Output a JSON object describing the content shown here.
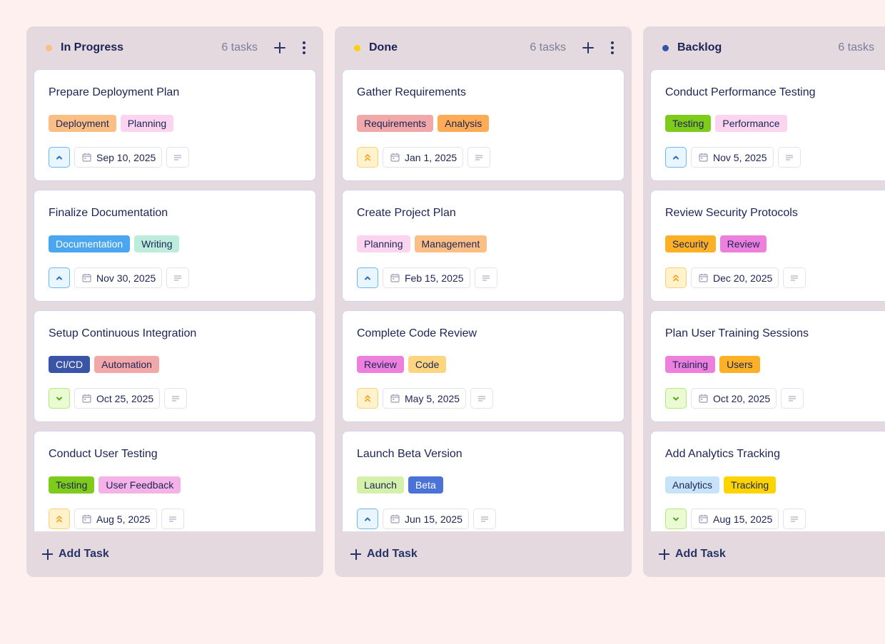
{
  "board": {
    "columns": [
      {
        "title": "In Progress",
        "count": "6 tasks",
        "dot_color": "#fcbf80",
        "add_task_label": "Add Task",
        "cards": [
          {
            "title": "Prepare Deployment Plan",
            "tags": [
              {
                "label": "Deployment",
                "bg": "#fbbf86",
                "fg": "#1c2456"
              },
              {
                "label": "Planning",
                "bg": "#fbd5f0",
                "fg": "#1c2456"
              }
            ],
            "priority": "medium",
            "date": "Sep 10, 2025"
          },
          {
            "title": "Finalize Documentation",
            "tags": [
              {
                "label": "Documentation",
                "bg": "#4aa7ef",
                "fg": "#ffffff"
              },
              {
                "label": "Writing",
                "bg": "#bdebdc",
                "fg": "#1c2456"
              }
            ],
            "priority": "medium",
            "date": "Nov 30, 2025"
          },
          {
            "title": "Setup Continuous Integration",
            "tags": [
              {
                "label": "CI/CD",
                "bg": "#3a55a8",
                "fg": "#ffffff"
              },
              {
                "label": "Automation",
                "bg": "#f2a8a8",
                "fg": "#1c2456"
              }
            ],
            "priority": "low",
            "date": "Oct 25, 2025"
          },
          {
            "title": "Conduct User Testing",
            "tags": [
              {
                "label": "Testing",
                "bg": "#7ecb1c",
                "fg": "#1c2456"
              },
              {
                "label": "User Feedback",
                "bg": "#f5b2e6",
                "fg": "#1c2456"
              }
            ],
            "priority": "high",
            "date": "Aug 5, 2025"
          }
        ]
      },
      {
        "title": "Done",
        "count": "6 tasks",
        "dot_color": "#fbd10a",
        "add_task_label": "Add Task",
        "cards": [
          {
            "title": "Gather Requirements",
            "tags": [
              {
                "label": "Requirements",
                "bg": "#f0a8a8",
                "fg": "#1c2456"
              },
              {
                "label": "Analysis",
                "bg": "#fdac55",
                "fg": "#1c2456"
              }
            ],
            "priority": "high",
            "date": "Jan 1, 2025"
          },
          {
            "title": "Create Project Plan",
            "tags": [
              {
                "label": "Planning",
                "bg": "#fbd5f0",
                "fg": "#1c2456"
              },
              {
                "label": "Management",
                "bg": "#fbbf86",
                "fg": "#1c2456"
              }
            ],
            "priority": "medium",
            "date": "Feb 15, 2025"
          },
          {
            "title": "Complete Code Review",
            "tags": [
              {
                "label": "Review",
                "bg": "#ed80dd",
                "fg": "#1c2456"
              },
              {
                "label": "Code",
                "bg": "#fdd480",
                "fg": "#1c2456"
              }
            ],
            "priority": "high",
            "date": "May 5, 2025"
          },
          {
            "title": "Launch Beta Version",
            "tags": [
              {
                "label": "Launch",
                "bg": "#d5f0a8",
                "fg": "#1c2456"
              },
              {
                "label": "Beta",
                "bg": "#4b72d6",
                "fg": "#ffffff"
              }
            ],
            "priority": "medium",
            "date": "Jun 15, 2025"
          }
        ]
      },
      {
        "title": "Backlog",
        "count": "6 tasks",
        "dot_color": "#3452a8",
        "add_task_label": "Add Task",
        "cards": [
          {
            "title": "Conduct Performance Testing",
            "tags": [
              {
                "label": "Testing",
                "bg": "#7ecb1c",
                "fg": "#1c2456"
              },
              {
                "label": "Performance",
                "bg": "#fbd5f0",
                "fg": "#1c2456"
              }
            ],
            "priority": "medium",
            "date": "Nov 5, 2025"
          },
          {
            "title": "Review Security Protocols",
            "tags": [
              {
                "label": "Security",
                "bg": "#fbb025",
                "fg": "#1c2456"
              },
              {
                "label": "Review",
                "bg": "#ed80dd",
                "fg": "#1c2456"
              }
            ],
            "priority": "high",
            "date": "Dec 20, 2025"
          },
          {
            "title": "Plan User Training Sessions",
            "tags": [
              {
                "label": "Training",
                "bg": "#ed80dd",
                "fg": "#1c2456"
              },
              {
                "label": "Users",
                "bg": "#fbb025",
                "fg": "#1c2456"
              }
            ],
            "priority": "low",
            "date": "Oct 20, 2025"
          },
          {
            "title": "Add Analytics Tracking",
            "tags": [
              {
                "label": "Analytics",
                "bg": "#c6e3fa",
                "fg": "#1c2456"
              },
              {
                "label": "Tracking",
                "bg": "#fdd300",
                "fg": "#1c2456"
              }
            ],
            "priority": "low",
            "date": "Aug 15, 2025"
          }
        ]
      }
    ]
  },
  "icons": {
    "priority_medium": "chevron-up-icon",
    "priority_high": "double-chevron-up-icon",
    "priority_low": "chevron-down-icon",
    "date": "calendar-icon",
    "description": "text-lines-icon",
    "add": "plus-icon",
    "menu": "more-vertical-icon"
  },
  "colors": {
    "page_bg": "#fdf0ef",
    "column_bg": "#e3d9df",
    "text_primary": "#1c2456",
    "text_muted": "#7c7d99",
    "priority_medium": "#2a6fbf",
    "priority_high": "#f5a623",
    "priority_low": "#5aa51a"
  }
}
